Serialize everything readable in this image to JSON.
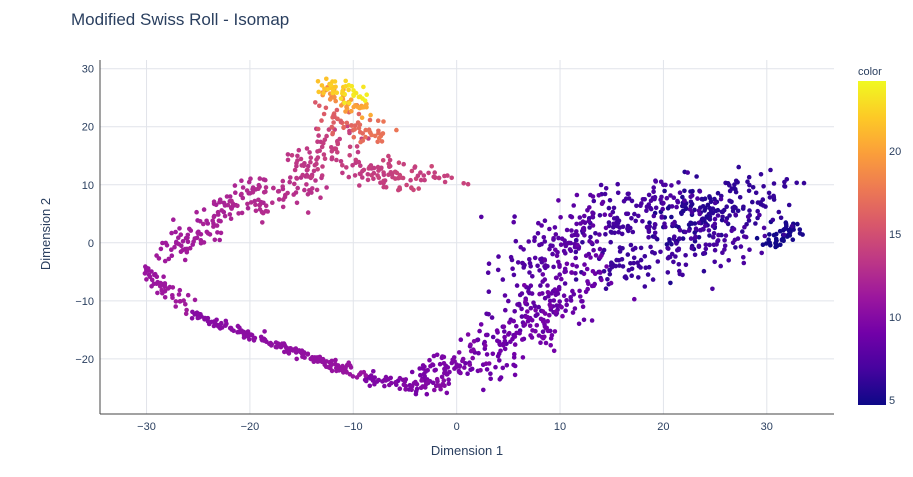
{
  "chart_data": {
    "type": "scatter",
    "title": "Modified Swiss Roll - Isomap",
    "xlabel": "Dimension 1",
    "ylabel": "Dimension 2",
    "xlim": [
      -34.5,
      36.5
    ],
    "ylim": [
      -29.5,
      31.5
    ],
    "xticks": [
      -30,
      -20,
      -10,
      0,
      10,
      20,
      30
    ],
    "xtick_labels": [
      "−30",
      "−20",
      "−10",
      "0",
      "10",
      "20",
      "30"
    ],
    "yticks": [
      -20,
      -10,
      0,
      10,
      20,
      30
    ],
    "ytick_labels": [
      "−20",
      "−10",
      "0",
      "10",
      "20",
      "30"
    ],
    "grid": true,
    "colorbar": {
      "title": "color",
      "range": [
        4.7,
        24.2
      ],
      "ticks": [
        5,
        10,
        15,
        20
      ],
      "tick_labels": [
        "5",
        "10",
        "15",
        "20"
      ],
      "colorscale": [
        "#0d0887",
        "#46039f",
        "#7201a8",
        "#9c179e",
        "#bd3786",
        "#d8576b",
        "#ed7953",
        "#fb9f3a",
        "#fdca26",
        "#f0f921"
      ]
    },
    "segments": [
      {
        "x": [
          30.5,
          33
        ],
        "y": [
          0,
          3
        ],
        "color": [
          4.8,
          5.2
        ],
        "n": 50,
        "spread": 0.9
      },
      {
        "x": [
          20,
          30.5
        ],
        "y": [
          3,
          8
        ],
        "color": [
          5.2,
          6.3
        ],
        "n": 180,
        "spread": 2.6
      },
      {
        "x": [
          13,
          28
        ],
        "y": [
          -5,
          2
        ],
        "color": [
          6.2,
          7.2
        ],
        "n": 150,
        "spread": 2.6
      },
      {
        "x": [
          13,
          22
        ],
        "y": [
          3,
          8
        ],
        "color": [
          6.5,
          7.3
        ],
        "n": 120,
        "spread": 2.8
      },
      {
        "x": [
          6,
          13
        ],
        "y": [
          -4,
          4
        ],
        "color": [
          7.3,
          8.2
        ],
        "n": 130,
        "spread": 2.6
      },
      {
        "x": [
          5,
          14
        ],
        "y": [
          -13,
          -5
        ],
        "color": [
          7.8,
          8.8
        ],
        "n": 130,
        "spread": 2.8
      },
      {
        "x": [
          2,
          9
        ],
        "y": [
          -21,
          -12
        ],
        "color": [
          8.6,
          9.3
        ],
        "n": 110,
        "spread": 2.4
      },
      {
        "x": [
          -5,
          2
        ],
        "y": [
          -25,
          -19
        ],
        "color": [
          9.2,
          9.7
        ],
        "n": 80,
        "spread": 1.6
      },
      {
        "x": [
          -9,
          -1
        ],
        "y": [
          -23.5,
          -24.8
        ],
        "color": [
          9.6,
          10.1
        ],
        "n": 60,
        "spread": 0.6
      },
      {
        "x": [
          -26,
          -9
        ],
        "y": [
          -12,
          -23
        ],
        "color": [
          10,
          11
        ],
        "n": 180,
        "spread": 0.35
      },
      {
        "x": [
          -30,
          -26
        ],
        "y": [
          -5,
          -11
        ],
        "color": [
          11,
          11.5
        ],
        "n": 50,
        "spread": 0.8
      },
      {
        "x": [
          -28,
          -24
        ],
        "y": [
          -2,
          3
        ],
        "color": [
          11.3,
          11.8
        ],
        "n": 60,
        "spread": 1.6
      },
      {
        "x": [
          -24,
          -19
        ],
        "y": [
          4,
          10
        ],
        "color": [
          11.8,
          12.6
        ],
        "n": 60,
        "spread": 1.4
      },
      {
        "x": [
          -20,
          -13
        ],
        "y": [
          6,
          11
        ],
        "color": [
          12.5,
          13.2
        ],
        "n": 60,
        "spread": 1.5
      },
      {
        "x": [
          -16,
          -10
        ],
        "y": [
          12,
          18
        ],
        "color": [
          13.2,
          14.2
        ],
        "n": 70,
        "spread": 1.7
      },
      {
        "x": [
          -10,
          -4
        ],
        "y": [
          13,
          11
        ],
        "color": [
          13.5,
          14.5
        ],
        "n": 70,
        "spread": 1.5
      },
      {
        "x": [
          -4,
          1
        ],
        "y": [
          12,
          10.5
        ],
        "color": [
          13.8,
          14.2
        ],
        "n": 20,
        "spread": 0.6
      },
      {
        "x": [
          -14,
          -7
        ],
        "y": [
          22,
          19
        ],
        "color": [
          15.5,
          17.5
        ],
        "n": 60,
        "spread": 1.2
      },
      {
        "x": [
          -13,
          -9
        ],
        "y": [
          26,
          23
        ],
        "color": [
          18.5,
          20.5
        ],
        "n": 40,
        "spread": 0.9
      },
      {
        "x": [
          -13,
          -9
        ],
        "y": [
          27.5,
          25
        ],
        "color": [
          21.5,
          24
        ],
        "n": 40,
        "spread": 0.8
      }
    ]
  }
}
